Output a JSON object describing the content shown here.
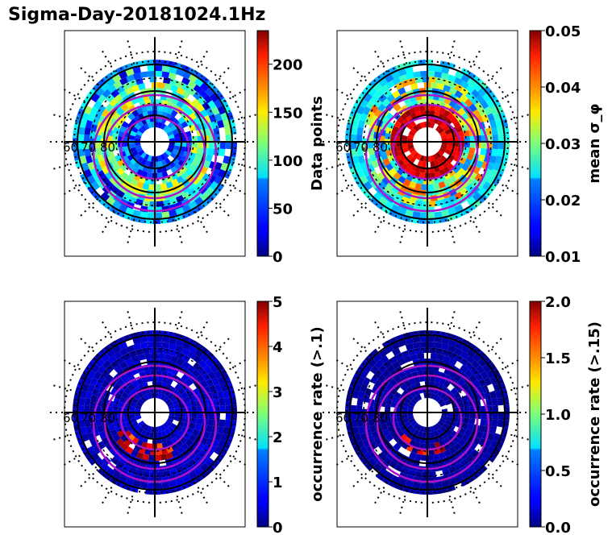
{
  "title": "Sigma-Day-20181024.1Hz",
  "colors": {
    "grid": "#000000",
    "magnetic_contours": "#b014c8",
    "background_panel": "#ffffff",
    "colormap": "jet"
  },
  "chart_data": [
    {
      "type": "heatmap",
      "projection": "polar (geographic latitude rings, local-time sectors)",
      "latitude_labels": [
        "60",
        "70",
        "80"
      ],
      "colorbar": {
        "label": "Data points",
        "range": [
          0,
          235
        ],
        "ticks": [
          "0",
          "50",
          "100",
          "150",
          "200"
        ],
        "colormap": "jet"
      },
      "grid": true
    },
    {
      "type": "heatmap",
      "projection": "polar (geographic latitude rings, local-time sectors)",
      "latitude_labels": [
        "60",
        "70",
        "80"
      ],
      "colorbar": {
        "label": "mean σ_φ",
        "range": [
          0.01,
          0.05
        ],
        "ticks": [
          "0.01",
          "0.02",
          "0.03",
          "0.04",
          "0.05"
        ],
        "colormap": "jet"
      },
      "grid": true
    },
    {
      "type": "heatmap",
      "projection": "polar (geographic latitude rings, local-time sectors)",
      "latitude_labels": [
        "60",
        "70",
        "80"
      ],
      "colorbar": {
        "label": "occurrence rate (>.1)",
        "range": [
          0,
          5
        ],
        "ticks": [
          "0",
          "1",
          "2",
          "3",
          "4",
          "5"
        ],
        "colormap": "jet"
      },
      "grid": true
    },
    {
      "type": "heatmap",
      "projection": "polar (geographic latitude rings, local-time sectors)",
      "latitude_labels": [
        "60",
        "70",
        "80"
      ],
      "colorbar": {
        "label": "occurrence rate (>.15)",
        "range": [
          0,
          2
        ],
        "ticks": [
          "0.0",
          "0.5",
          "1.0",
          "1.5",
          "2.0"
        ],
        "colormap": "jet"
      },
      "grid": true
    }
  ]
}
